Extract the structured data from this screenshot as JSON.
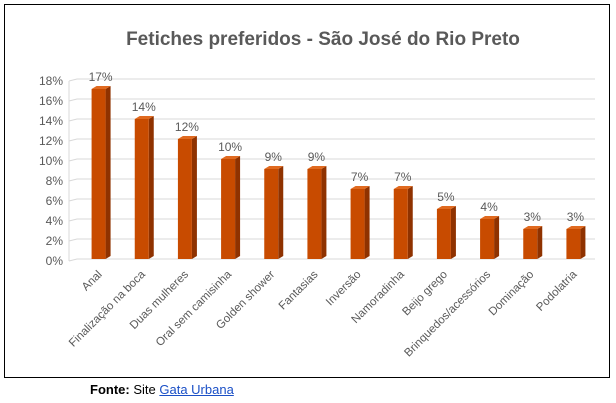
{
  "source": {
    "label": "Fonte:",
    "prefix": "Site",
    "link_text": "Gata Urbana"
  },
  "chart_data": {
    "type": "bar",
    "title": "Fetiches preferidos - São José do Rio Preto",
    "categories": [
      "Anal",
      "Finalização na boca",
      "Duas mulheres",
      "Oral sem camisinha",
      "Golden shower",
      "Fantasias",
      "Inversão",
      "Namoradinha",
      "Beijo grego",
      "Brinquedos/acessórios",
      "Dominação",
      "Podolatria"
    ],
    "values": [
      17,
      14,
      12,
      10,
      9,
      9,
      7,
      7,
      5,
      4,
      3,
      3
    ],
    "data_labels": [
      "17%",
      "14%",
      "12%",
      "10%",
      "9%",
      "9%",
      "7%",
      "7%",
      "5%",
      "4%",
      "3%",
      "3%"
    ],
    "ylim": [
      0,
      18
    ],
    "yticks": [
      0,
      2,
      4,
      6,
      8,
      10,
      12,
      14,
      16,
      18
    ],
    "ytick_labels": [
      "0%",
      "2%",
      "4%",
      "6%",
      "8%",
      "10%",
      "12%",
      "14%",
      "16%",
      "18%"
    ],
    "grid": true,
    "legend": "none",
    "colors": {
      "bar_front": "#c84b00",
      "bar_side": "#8f3200",
      "bar_top": "#e06a20",
      "grid": "#d9d9d9",
      "text": "#595959",
      "title": "#595959"
    }
  }
}
